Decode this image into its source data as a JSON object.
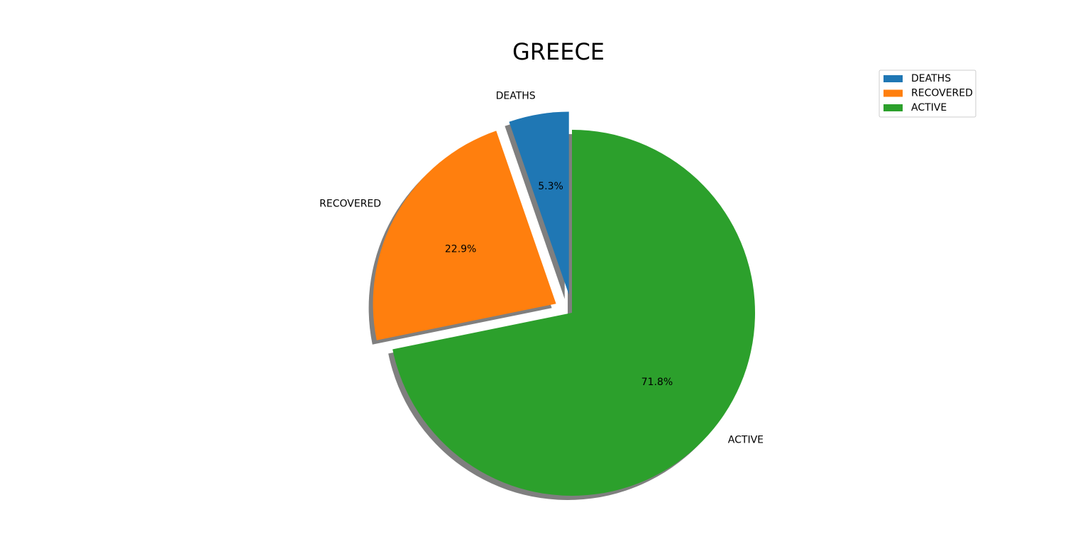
{
  "chart_data": {
    "type": "pie",
    "title": "GREECE",
    "categories": [
      "DEATHS",
      "RECOVERED",
      "ACTIVE"
    ],
    "values": [
      5.3,
      22.9,
      71.8
    ],
    "value_labels": [
      "5.3%",
      "22.9%",
      "71.8%"
    ],
    "colors": [
      "#1f77b4",
      "#ff7f0e",
      "#2ca02c"
    ],
    "exploded": [
      true,
      true,
      false
    ],
    "shadow": true,
    "start_angle_deg": 90,
    "direction": "counterclockwise",
    "legend": {
      "placement": "top-right",
      "entries": [
        "DEATHS",
        "RECOVERED",
        "ACTIVE"
      ]
    }
  }
}
